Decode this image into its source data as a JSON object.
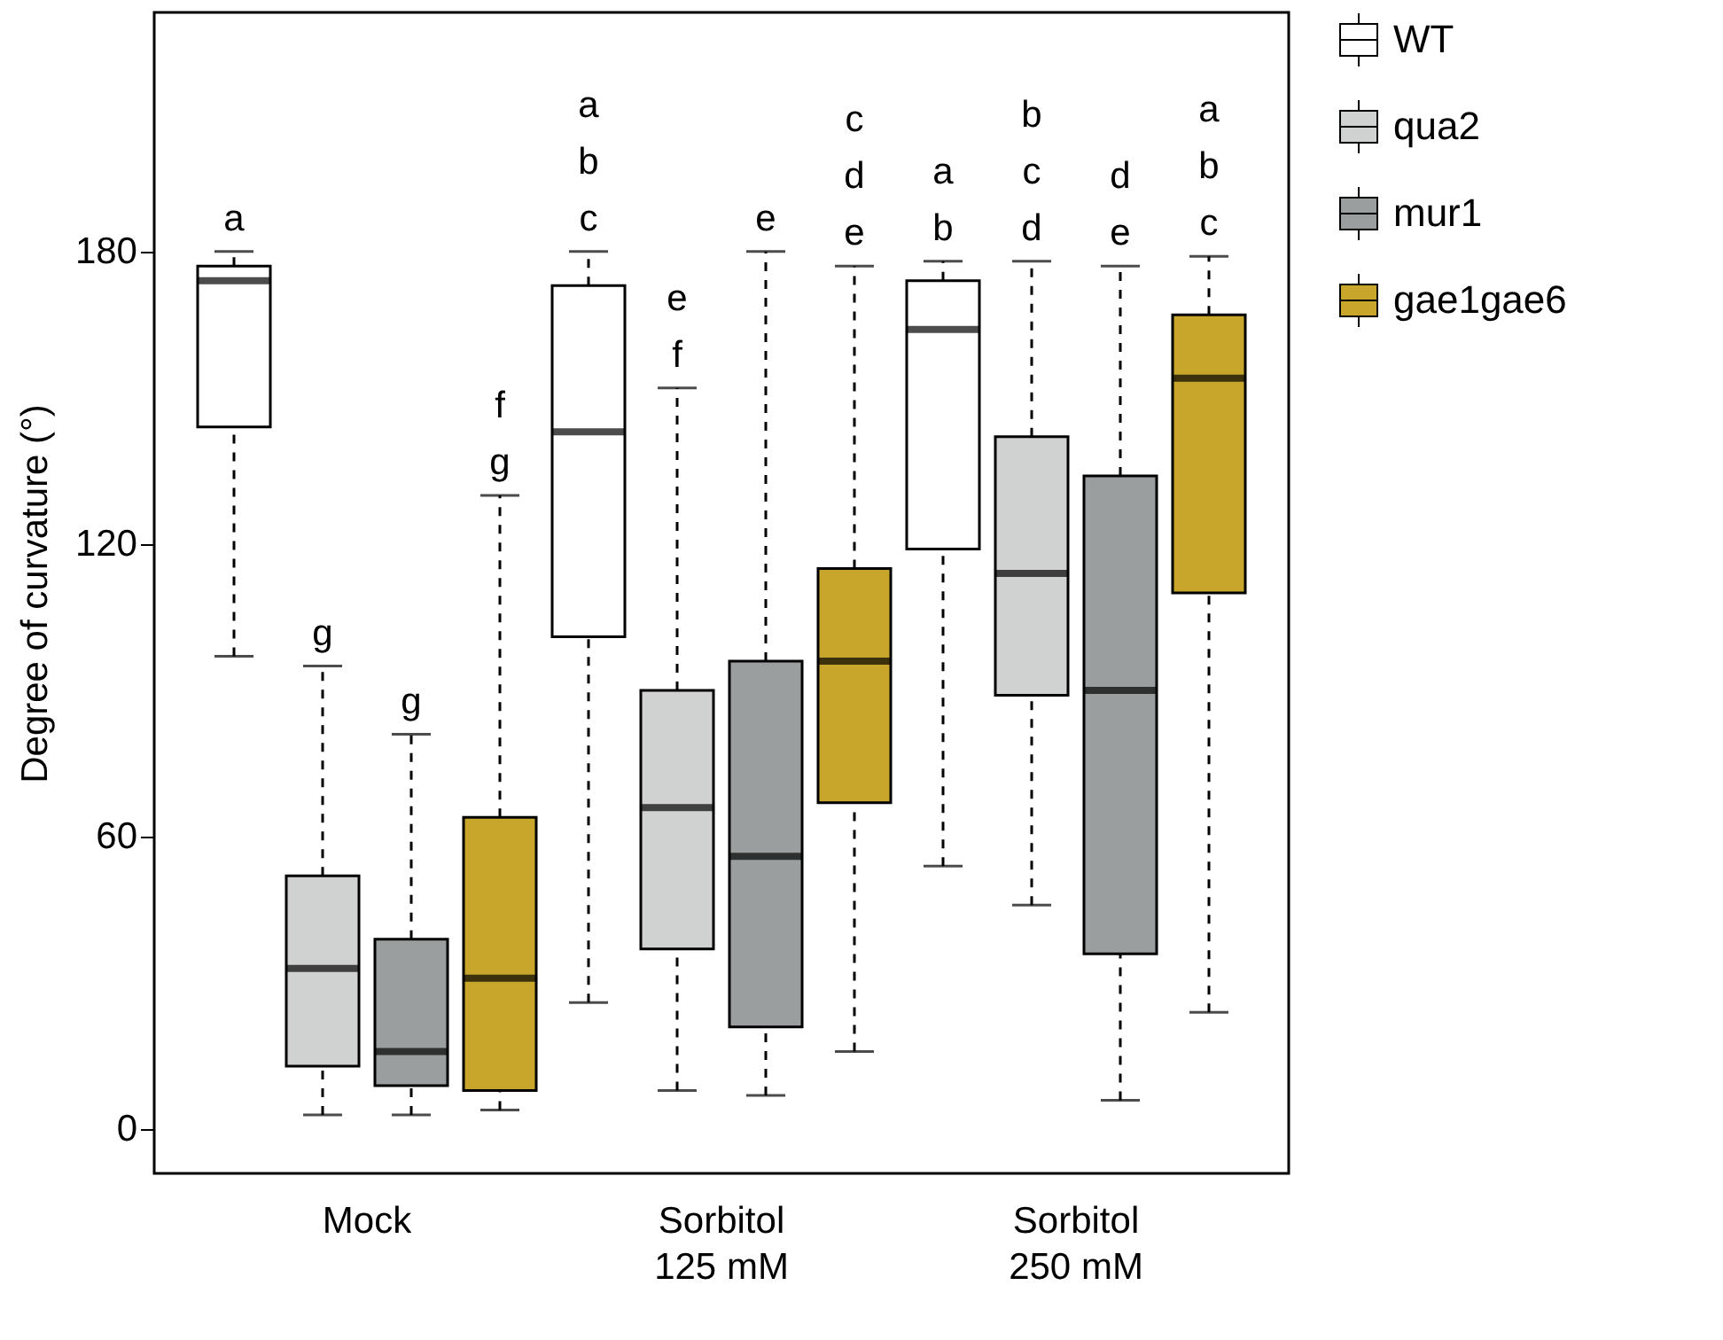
{
  "chart_data": {
    "type": "box",
    "ylabel": "Degree of curvature (°)",
    "categories": [
      "Mock",
      "Sorbitol\n125 mM",
      "Sorbitol\n250 mM"
    ],
    "ylim": [
      -9,
      229
    ],
    "yticks": [
      0,
      60,
      120,
      180
    ],
    "grid": false,
    "legend": "top right",
    "line_style": "dashed",
    "series": [
      {
        "name": "WT",
        "color": "#ffffff",
        "boxes": [
          {
            "low": 97,
            "q1": 144,
            "median": 174,
            "q3": 177,
            "high": 180
          },
          {
            "low": 26,
            "q1": 101,
            "median": 143,
            "q3": 173,
            "high": 180
          },
          {
            "low": 54,
            "q1": 119,
            "median": 164,
            "q3": 174,
            "high": 178
          }
        ]
      },
      {
        "name": "qua2",
        "color": "#d0d2d1",
        "boxes": [
          {
            "low": 3,
            "q1": 13,
            "median": 33,
            "q3": 52,
            "high": 95
          },
          {
            "low": 8,
            "q1": 37,
            "median": 66,
            "q3": 90,
            "high": 152
          },
          {
            "low": 46,
            "q1": 89,
            "median": 114,
            "q3": 142,
            "high": 178
          }
        ]
      },
      {
        "name": "mur1",
        "color": "#9b9e9f",
        "boxes": [
          {
            "low": 3,
            "q1": 9,
            "median": 16,
            "q3": 39,
            "high": 81
          },
          {
            "low": 7,
            "q1": 21,
            "median": 56,
            "q3": 96,
            "high": 180
          },
          {
            "low": 6,
            "q1": 36,
            "median": 90,
            "q3": 134,
            "high": 177
          }
        ]
      },
      {
        "name": "gae1gae6",
        "color": "#c7a62b",
        "boxes": [
          {
            "low": 4,
            "q1": 8,
            "median": 31,
            "q3": 64,
            "high": 130
          },
          {
            "low": 16,
            "q1": 67,
            "median": 96,
            "q3": 115,
            "high": 177
          },
          {
            "low": 24,
            "q1": 110,
            "median": 154,
            "q3": 167,
            "high": 179
          }
        ]
      }
    ],
    "annotations": [
      "a",
      "g",
      "g",
      "f\ng",
      "a\nb\nc",
      "e\nf",
      "e",
      "c\nd\ne",
      "a\nb",
      "b\nc\nd",
      "d\ne",
      "a\nb\nc"
    ]
  }
}
